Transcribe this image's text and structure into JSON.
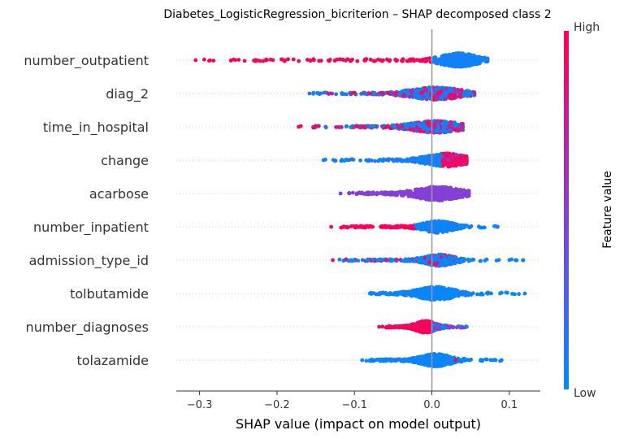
{
  "chart_data": {
    "type": "scatter",
    "subtype": "shap-beeswarm",
    "title": "Diabetes_LogisticRegression_bicriterion – SHAP decomposed class 2",
    "xlabel": "SHAP value (impact on model output)",
    "xlim": [
      -0.33,
      0.14
    ],
    "xticks": [
      -0.3,
      -0.2,
      -0.1,
      0.0,
      0.1
    ],
    "xtick_labels": [
      "−0.3",
      "−0.2",
      "−0.1",
      "0.0",
      "0.1"
    ],
    "colorbar": {
      "label": "Feature value",
      "high": "High",
      "low": "Low",
      "high_color": "#ff0052",
      "mid_color": "#8a3cd4",
      "low_color": "#008bfb"
    },
    "features": [
      {
        "name": "number_outpatient",
        "min": -0.305,
        "max": 0.072,
        "center": 0.035,
        "spread": 0.018,
        "height": 0.42,
        "color_mode": "low_right"
      },
      {
        "name": "diag_2",
        "min": -0.158,
        "max": 0.055,
        "center": 0.005,
        "spread": 0.025,
        "height": 0.38,
        "color_mode": "mixed"
      },
      {
        "name": "time_in_hospital",
        "min": -0.172,
        "max": 0.04,
        "center": 0.005,
        "spread": 0.025,
        "height": 0.36,
        "color_mode": "mixed"
      },
      {
        "name": "change",
        "min": -0.14,
        "max": 0.045,
        "center": 0.018,
        "spread": 0.02,
        "height": 0.4,
        "color_mode": "high_right"
      },
      {
        "name": "acarbose",
        "min": -0.118,
        "max": 0.048,
        "center": 0.008,
        "spread": 0.022,
        "height": 0.42,
        "color_mode": "mid"
      },
      {
        "name": "number_inpatient",
        "min": -0.13,
        "max": 0.085,
        "center": 0.008,
        "spread": 0.015,
        "height": 0.36,
        "color_mode": "low_right"
      },
      {
        "name": "admission_type_id",
        "min": -0.128,
        "max": 0.118,
        "center": 0.01,
        "spread": 0.015,
        "height": 0.34,
        "color_mode": "mixed_low"
      },
      {
        "name": "tolbutamide",
        "min": -0.08,
        "max": 0.12,
        "center": 0.005,
        "spread": 0.018,
        "height": 0.4,
        "color_mode": "low"
      },
      {
        "name": "number_diagnoses",
        "min": -0.068,
        "max": 0.045,
        "center": -0.008,
        "spread": 0.01,
        "height": 0.36,
        "color_mode": "high_left"
      },
      {
        "name": "tolazamide",
        "min": -0.09,
        "max": 0.09,
        "center": 0.005,
        "spread": 0.015,
        "height": 0.38,
        "color_mode": "low"
      }
    ]
  }
}
